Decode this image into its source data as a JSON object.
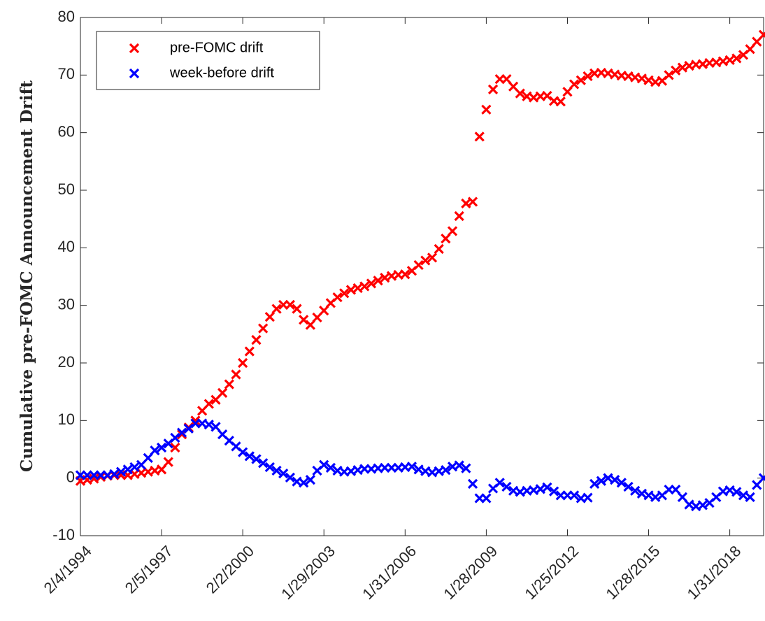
{
  "chart_data": {
    "type": "scatter",
    "ylabel": "Cumulative pre-FOMC Announcement Drift",
    "xlim": [
      1,
      203
    ],
    "xticks": [
      {
        "value": 1,
        "label": "2/4/1994"
      },
      {
        "value": 25,
        "label": "2/5/1997"
      },
      {
        "value": 49,
        "label": "2/2/2000"
      },
      {
        "value": 73,
        "label": "1/29/2003"
      },
      {
        "value": 97,
        "label": "1/31/2006"
      },
      {
        "value": 121,
        "label": "1/28/2009"
      },
      {
        "value": 145,
        "label": "1/25/2012"
      },
      {
        "value": 169,
        "label": "1/28/2015"
      },
      {
        "value": 193,
        "label": "1/31/2018"
      }
    ],
    "ylim": [
      -10,
      80
    ],
    "yticks": [
      -10,
      0,
      10,
      20,
      30,
      40,
      50,
      60,
      70,
      80
    ],
    "legend": "upper left",
    "x": [
      1,
      3,
      5,
      7,
      9,
      11,
      13,
      15,
      17,
      19,
      21,
      23,
      25,
      27,
      29,
      31,
      33,
      35,
      37,
      39,
      41,
      43,
      45,
      47,
      49,
      51,
      53,
      55,
      57,
      59,
      61,
      63,
      65,
      67,
      69,
      71,
      73,
      75,
      77,
      79,
      81,
      83,
      85,
      87,
      89,
      91,
      93,
      95,
      97,
      99,
      101,
      103,
      105,
      107,
      109,
      111,
      113,
      115,
      117,
      119,
      121,
      123,
      125,
      127,
      129,
      131,
      133,
      135,
      137,
      139,
      141,
      143,
      145,
      147,
      149,
      151,
      153,
      155,
      157,
      159,
      161,
      163,
      165,
      167,
      169,
      171,
      173,
      175,
      177,
      179,
      181,
      183,
      185,
      187,
      189,
      191,
      193,
      195,
      197,
      199,
      201,
      203
    ],
    "series": [
      {
        "name": "pre-FOMC drift",
        "color": "#ff0000",
        "values": [
          -0.5,
          -0.3,
          -0.1,
          0.2,
          0.4,
          0.5,
          0.5,
          0.5,
          0.7,
          0.9,
          1.1,
          1.3,
          1.5,
          2.8,
          5.3,
          7.6,
          8.8,
          10,
          11.7,
          12.9,
          13.6,
          14.8,
          16.3,
          18,
          20,
          22,
          24,
          26,
          28,
          29.4,
          30.1,
          30.1,
          29.4,
          27.5,
          26.6,
          27.9,
          29.1,
          30.4,
          31.4,
          32.1,
          32.7,
          33,
          33.3,
          33.8,
          34.3,
          34.8,
          35.1,
          35.3,
          35.4,
          36,
          37,
          37.8,
          38.3,
          39.8,
          41.6,
          42.9,
          45.5,
          47.7,
          48,
          59.3,
          64,
          67.5,
          69.3,
          69.3,
          68,
          66.8,
          66.3,
          66.1,
          66.3,
          66.4,
          65.5,
          65.4,
          67.1,
          68.4,
          69.1,
          69.8,
          70.3,
          70.4,
          70.3,
          70.1,
          69.9,
          69.8,
          69.6,
          69.4,
          69.1,
          68.8,
          69,
          70,
          70.8,
          71.3,
          71.6,
          71.8,
          71.9,
          72.1,
          72.2,
          72.4,
          72.6,
          72.9,
          73.5,
          74.5,
          75.8,
          77
        ]
      },
      {
        "name": "week-before drift",
        "color": "#0000ff",
        "values": [
          0.5,
          0.5,
          0.5,
          0.5,
          0.5,
          0.7,
          1.1,
          1.5,
          1.9,
          2.3,
          3.5,
          4.8,
          5.3,
          6,
          7,
          7.9,
          8.6,
          9.5,
          9.5,
          9.3,
          8.9,
          7.6,
          6.5,
          5.5,
          4.5,
          3.8,
          3.3,
          2.6,
          1.9,
          1.3,
          0.8,
          0.1,
          -0.6,
          -0.8,
          -0.3,
          1.3,
          2.3,
          1.8,
          1.3,
          1.1,
          1.2,
          1.4,
          1.6,
          1.6,
          1.7,
          1.8,
          1.8,
          1.8,
          1.9,
          2,
          1.5,
          1.2,
          1,
          1.2,
          1.4,
          2,
          2.2,
          1.7,
          -1,
          -3.5,
          -3.5,
          -1.8,
          -0.8,
          -1.5,
          -2.2,
          -2.4,
          -2.2,
          -2.1,
          -1.9,
          -1.6,
          -2.3,
          -3,
          -3,
          -3,
          -3.5,
          -3.4,
          -1,
          -0.5,
          0,
          -0.3,
          -0.8,
          -1.5,
          -2.2,
          -2.7,
          -3,
          -3.3,
          -3,
          -2,
          -2,
          -3.3,
          -4.6,
          -4.9,
          -4.7,
          -4.3,
          -3.3,
          -2.3,
          -2.1,
          -2.4,
          -3,
          -3.3,
          -1.2,
          0
        ]
      }
    ]
  }
}
